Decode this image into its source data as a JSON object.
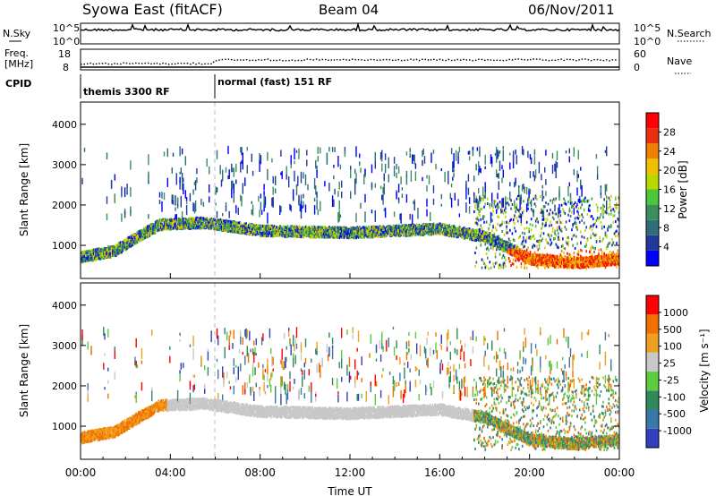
{
  "header": {
    "title": "Syowa East (fitACF)",
    "beam": "Beam 04",
    "date": "06/Nov/2011"
  },
  "top_panels": {
    "nsky_label": "N.Sky",
    "nsearch_label": "N.Search",
    "nsky_ticks": [
      "10^5",
      "10^0"
    ],
    "nsearch_ticks": [
      "10^5",
      "10^0"
    ],
    "freq_label": "Freq.",
    "freq_unit": "[MHz]",
    "freq_ticks": [
      "18",
      "8"
    ],
    "nave_label": "Nave",
    "nave_ticks": [
      "60",
      "0"
    ],
    "cpid_label": "CPID",
    "cpid_modes": [
      {
        "label": "themis 3300 RF",
        "start_hour": 0
      },
      {
        "label": "normal (fast) 151 RF",
        "start_hour": 6
      }
    ]
  },
  "chart_data": [
    {
      "type": "heatmap",
      "title": "",
      "ylabel": "Slant Range [km]",
      "xlabel": "",
      "x_range_hours": [
        0,
        24
      ],
      "ylim": [
        180,
        4550
      ],
      "y_ticks": [
        "1000",
        "2000",
        "3000",
        "4000"
      ],
      "colorbar": {
        "label": "Power [dB]",
        "ticks": [
          "28",
          "24",
          "20",
          "16",
          "12",
          "8",
          "4"
        ],
        "colors": [
          "#0000ff",
          "#1f3a9a",
          "#2e6e78",
          "#3b8f5c",
          "#4bc838",
          "#b8d800",
          "#f0c000",
          "#f08000",
          "#e83010",
          "#ff0000"
        ]
      },
      "echo_band_km": [
        {
          "hour": 0.0,
          "center": 700
        },
        {
          "hour": 1.5,
          "center": 850
        },
        {
          "hour": 2.7,
          "center": 1250
        },
        {
          "hour": 3.5,
          "center": 1500
        },
        {
          "hour": 5.5,
          "center": 1550
        },
        {
          "hour": 8.0,
          "center": 1350
        },
        {
          "hour": 12.0,
          "center": 1300
        },
        {
          "hour": 16.0,
          "center": 1400
        },
        {
          "hour": 18.0,
          "center": 1200
        },
        {
          "hour": 20.0,
          "center": 650
        },
        {
          "hour": 22.0,
          "center": 550
        },
        {
          "hour": 24.0,
          "center": 650
        }
      ]
    },
    {
      "type": "heatmap",
      "title": "",
      "ylabel": "Slant Range [km]",
      "xlabel": "Time UT",
      "x_range_hours": [
        0,
        24
      ],
      "x_ticks": [
        "00:00",
        "04:00",
        "08:00",
        "12:00",
        "16:00",
        "20:00",
        "00:00"
      ],
      "ylim": [
        180,
        4550
      ],
      "y_ticks": [
        "1000",
        "2000",
        "3000",
        "4000"
      ],
      "colorbar": {
        "label": "Velocity [m s⁻¹]",
        "ticks": [
          "1000",
          "500",
          "100",
          "25",
          "-25",
          "-100",
          "-500",
          "-1000"
        ],
        "colors": [
          "#3040c0",
          "#3a78a8",
          "#2e8a5a",
          "#5ccc40",
          "#c8c8c8",
          "#f0a020",
          "#f07000",
          "#ff0000"
        ]
      }
    }
  ]
}
